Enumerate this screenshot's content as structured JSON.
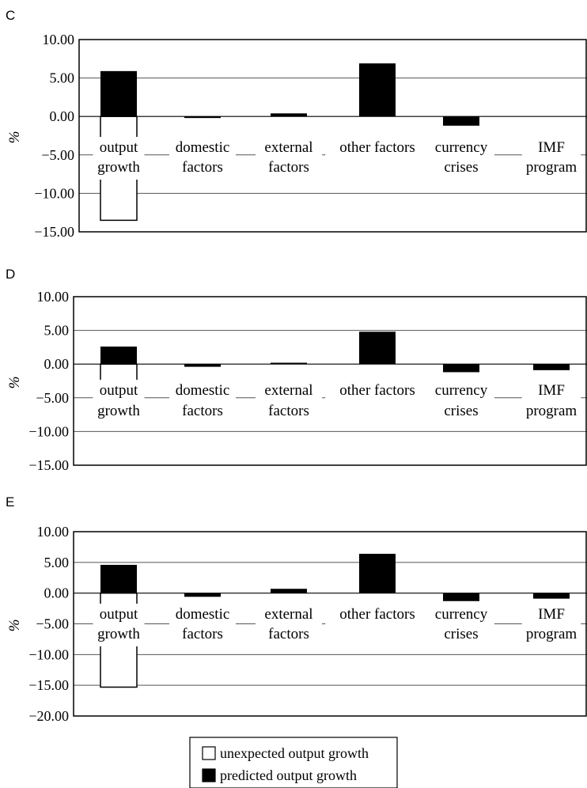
{
  "chart_data": [
    {
      "type": "bar",
      "panel": "C",
      "ylabel": "%",
      "ylim": [
        -15,
        10
      ],
      "yticks": [
        "10.00",
        "5.00",
        "0.00",
        "-5.00",
        "-10.00",
        "-15.00"
      ],
      "categories": [
        [
          "output",
          "growth"
        ],
        [
          "domestic",
          "factors"
        ],
        [
          "external",
          "factors"
        ],
        [
          "other factors"
        ],
        [
          "currency",
          "crises"
        ],
        [
          "IMF",
          "program"
        ]
      ],
      "series": [
        {
          "name": "unexpected output growth",
          "values": [
            -13.5,
            null,
            null,
            null,
            null,
            null
          ]
        },
        {
          "name": "predicted output growth",
          "values": [
            5.9,
            -0.2,
            0.4,
            6.9,
            -1.2,
            0
          ]
        }
      ],
      "grid": true
    },
    {
      "type": "bar",
      "panel": "D",
      "ylabel": "%",
      "ylim": [
        -15,
        10
      ],
      "yticks": [
        "10.00",
        "5.00",
        "0.00",
        "-5.00",
        "-10.00",
        "-15.00"
      ],
      "categories": [
        [
          "output",
          "growth"
        ],
        [
          "domestic",
          "factors"
        ],
        [
          "external",
          "factors"
        ],
        [
          "other factors"
        ],
        [
          "currency",
          "crises"
        ],
        [
          "IMF",
          "program"
        ]
      ],
      "series": [
        {
          "name": "unexpected output growth",
          "values": [
            -3.3,
            null,
            null,
            null,
            null,
            null
          ]
        },
        {
          "name": "predicted output growth",
          "values": [
            2.6,
            -0.4,
            0.2,
            4.8,
            -1.2,
            -0.9
          ]
        }
      ],
      "grid": true
    },
    {
      "type": "bar",
      "panel": "E",
      "ylabel": "%",
      "ylim": [
        -20,
        10
      ],
      "yticks": [
        "10.00",
        "5.00",
        "0.00",
        "-5.00",
        "-10.00",
        "-15.00",
        "-20.00"
      ],
      "categories": [
        [
          "output",
          "growth"
        ],
        [
          "domestic",
          "factors"
        ],
        [
          "external",
          "factors"
        ],
        [
          "other factors"
        ],
        [
          "currency",
          "crises"
        ],
        [
          "IMF",
          "program"
        ]
      ],
      "series": [
        {
          "name": "unexpected output growth",
          "values": [
            -15.3,
            null,
            null,
            null,
            null,
            null
          ]
        },
        {
          "name": "predicted output growth",
          "values": [
            4.6,
            -0.6,
            0.7,
            6.4,
            -1.3,
            -0.9
          ]
        }
      ],
      "grid": true
    }
  ],
  "legend": {
    "items": [
      {
        "label": "unexpected output growth",
        "color": "#ffffff"
      },
      {
        "label": "predicted output growth",
        "color": "#000000"
      }
    ]
  },
  "colors": {
    "predicted": "#000000",
    "unexpected": "#ffffff",
    "axis": "#000000",
    "grid": "#555555"
  }
}
